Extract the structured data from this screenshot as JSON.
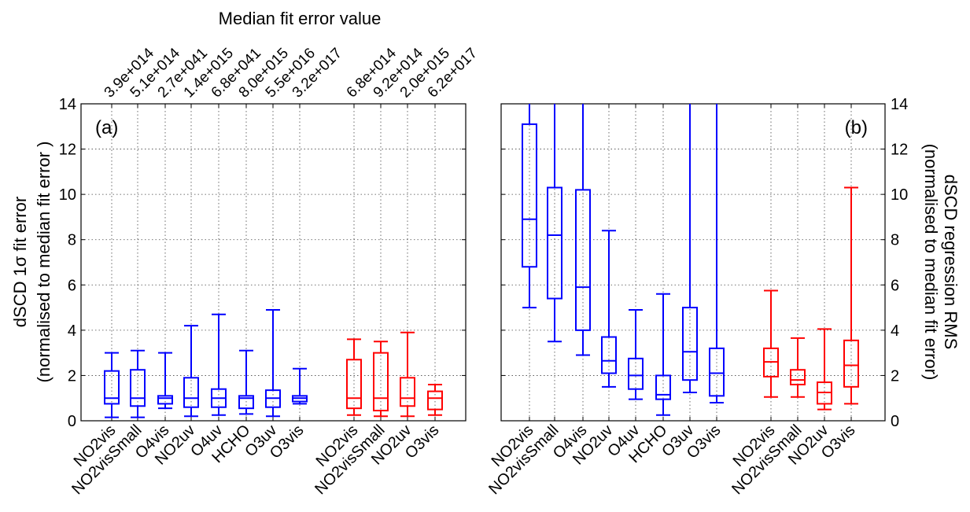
{
  "figure": {
    "top_title": "Median fit error value"
  },
  "chart_data": [
    {
      "id": "a",
      "type": "box",
      "panel_label": "(a)",
      "ylabel_line1": "dSCD 1σ fit error",
      "ylabel_line2": "(normalised to median fit error )",
      "ylim": [
        0,
        14
      ],
      "yticks": [
        "0",
        "2",
        "4",
        "6",
        "8",
        "10",
        "12",
        "14"
      ],
      "grid": true,
      "categories": [
        "NO2vis",
        "NO2visSmall",
        "O4vis",
        "NO2uv",
        "O4uv",
        "HCHO",
        "O3uv",
        "O3vis",
        "NO2vis",
        "NO2visSmall",
        "NO2uv",
        "O3vis"
      ],
      "top_tick_labels": [
        "3.9e+014",
        "5.1e+014",
        "2.7e+041",
        "1.4e+015",
        "6.8e+041",
        "8.0e+015",
        "5.5e+016",
        "3.2e+017",
        "6.8e+014",
        "9.2e+014",
        "2.0e+015",
        "6.2e+017"
      ],
      "series": [
        {
          "color": "#0000ff",
          "boxes": [
            {
              "category": "NO2vis",
              "min": 0.15,
              "q1": 0.75,
              "median": 1.0,
              "q3": 2.2,
              "max": 3.0
            },
            {
              "category": "NO2visSmall",
              "min": 0.15,
              "q1": 0.65,
              "median": 1.0,
              "q3": 2.25,
              "max": 3.1
            },
            {
              "category": "O4vis",
              "min": 0.55,
              "q1": 0.75,
              "median": 1.0,
              "q3": 1.1,
              "max": 3.0
            },
            {
              "category": "NO2uv",
              "min": 0.2,
              "q1": 0.6,
              "median": 1.0,
              "q3": 1.9,
              "max": 4.2
            },
            {
              "category": "O4uv",
              "min": 0.25,
              "q1": 0.6,
              "median": 1.0,
              "q3": 1.4,
              "max": 4.7
            },
            {
              "category": "HCHO",
              "min": 0.3,
              "q1": 0.55,
              "median": 1.0,
              "q3": 1.1,
              "max": 3.1
            },
            {
              "category": "O3uv",
              "min": 0.2,
              "q1": 0.6,
              "median": 1.0,
              "q3": 1.35,
              "max": 4.9
            },
            {
              "category": "O3vis",
              "min": 0.75,
              "q1": 0.85,
              "median": 1.0,
              "q3": 1.1,
              "max": 2.3
            }
          ]
        },
        {
          "color": "#ff0000",
          "boxes": [
            {
              "category": "NO2vis",
              "min": 0.25,
              "q1": 0.55,
              "median": 1.0,
              "q3": 2.7,
              "max": 3.6
            },
            {
              "category": "NO2visSmall",
              "min": 0.2,
              "q1": 0.45,
              "median": 1.0,
              "q3": 3.0,
              "max": 3.5
            },
            {
              "category": "NO2uv",
              "min": 0.2,
              "q1": 0.65,
              "median": 1.0,
              "q3": 1.9,
              "max": 3.9
            },
            {
              "category": "O3vis",
              "min": 0.25,
              "q1": 0.5,
              "median": 1.0,
              "q3": 1.3,
              "max": 1.6
            }
          ]
        }
      ]
    },
    {
      "id": "b",
      "type": "box",
      "panel_label": "(b)",
      "ylabel_line1": "dSCD regression  RMS",
      "ylabel_line2": "(normalised to median fit error)",
      "ylim": [
        0,
        14
      ],
      "yticks": [
        "0",
        "2",
        "4",
        "6",
        "8",
        "10",
        "12",
        "14"
      ],
      "grid": true,
      "categories": [
        "NO2vis",
        "NO2visSmall",
        "O4vis",
        "NO2uv",
        "O4uv",
        "HCHO",
        "O3uv",
        "O3vis",
        "NO2vis",
        "NO2visSmall",
        "NO2uv",
        "O3vis"
      ],
      "series": [
        {
          "color": "#0000ff",
          "boxes": [
            {
              "category": "NO2vis",
              "min": 5.0,
              "q1": 6.8,
              "median": 8.9,
              "q3": 13.1,
              "max": 14
            },
            {
              "category": "NO2visSmall",
              "min": 3.5,
              "q1": 5.4,
              "median": 8.2,
              "q3": 10.3,
              "max": 14
            },
            {
              "category": "O4vis",
              "min": 2.9,
              "q1": 4.0,
              "median": 5.9,
              "q3": 10.2,
              "max": 14
            },
            {
              "category": "NO2uv",
              "min": 1.5,
              "q1": 2.1,
              "median": 2.65,
              "q3": 3.7,
              "max": 8.4
            },
            {
              "category": "O4uv",
              "min": 0.95,
              "q1": 1.4,
              "median": 2.0,
              "q3": 2.75,
              "max": 4.9
            },
            {
              "category": "HCHO",
              "min": 0.25,
              "q1": 0.95,
              "median": 1.15,
              "q3": 2.0,
              "max": 5.6
            },
            {
              "category": "O3uv",
              "min": 1.25,
              "q1": 1.8,
              "median": 3.05,
              "q3": 5.0,
              "max": 14
            },
            {
              "category": "O3vis",
              "min": 0.8,
              "q1": 1.1,
              "median": 2.1,
              "q3": 3.2,
              "max": 14
            }
          ]
        },
        {
          "color": "#ff0000",
          "boxes": [
            {
              "category": "NO2vis",
              "min": 1.05,
              "q1": 1.95,
              "median": 2.6,
              "q3": 3.2,
              "max": 5.75
            },
            {
              "category": "NO2visSmall",
              "min": 1.05,
              "q1": 1.6,
              "median": 1.8,
              "q3": 2.25,
              "max": 3.65
            },
            {
              "category": "NO2uv",
              "min": 0.5,
              "q1": 0.75,
              "median": 1.25,
              "q3": 1.7,
              "max": 4.05
            },
            {
              "category": "O3vis",
              "min": 0.75,
              "q1": 1.5,
              "median": 2.45,
              "q3": 3.55,
              "max": 10.3
            }
          ]
        }
      ]
    }
  ]
}
